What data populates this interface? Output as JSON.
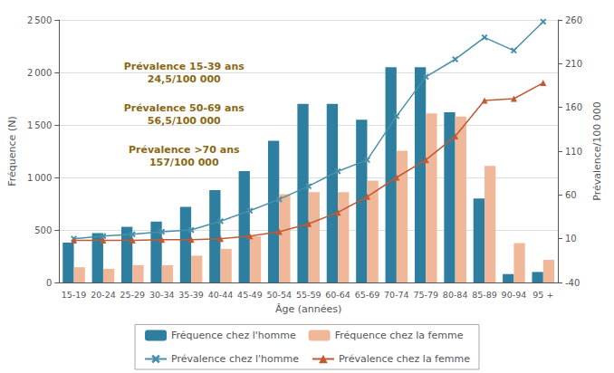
{
  "chart_data": {
    "type": "bar",
    "xlabel": "Âge (années)",
    "ylabel": "Fréquence (N)",
    "y2label": "Prévalence/100 000",
    "categories": [
      "15-19",
      "20-24",
      "25-29",
      "30-34",
      "35-39",
      "40-44",
      "45-49",
      "50-54",
      "55-59",
      "60-64",
      "65-69",
      "70-74",
      "75-79",
      "80-84",
      "85-89",
      "90-94",
      "95 +"
    ],
    "series": [
      {
        "name": "Fréquence chez l'homme",
        "type": "bar",
        "color": "#2e7f9f",
        "values": [
          380,
          470,
          530,
          580,
          720,
          880,
          1060,
          1350,
          1700,
          1700,
          1550,
          2050,
          2050,
          1620,
          800,
          80,
          100
        ]
      },
      {
        "name": "Fréquence chez la femme",
        "type": "bar",
        "color": "#f0b899",
        "values": [
          145,
          130,
          165,
          165,
          255,
          320,
          440,
          840,
          860,
          860,
          970,
          1255,
          1610,
          1580,
          1110,
          375,
          215
        ]
      },
      {
        "name": "Prévalence chez l'homme",
        "type": "line",
        "color": "#4a8fa8",
        "marker": "x",
        "axis": "y2",
        "values": [
          10,
          13,
          15,
          18,
          20,
          30,
          42,
          55,
          70,
          87,
          100,
          150,
          195,
          215,
          240,
          225,
          258
        ]
      },
      {
        "name": "Prévalence chez la femme",
        "type": "line",
        "color": "#c05a35",
        "marker": "triangle",
        "axis": "y2",
        "values": [
          8,
          8,
          8,
          9,
          9,
          10,
          13,
          18,
          27,
          40,
          58,
          80,
          100,
          127,
          168,
          170,
          188
        ]
      }
    ],
    "ylim": [
      0,
      2500
    ],
    "yticks": [
      0,
      500,
      {
        "value": 1000,
        "label": "1 000"
      },
      {
        "value": 1500,
        "label": "1 500"
      },
      {
        "value": 2000,
        "label": "2 000"
      },
      {
        "value": 2500,
        "label": "2 500"
      }
    ],
    "y2lim": [
      -40,
      260
    ],
    "y2ticks": [
      -40,
      10,
      60,
      110,
      160,
      210,
      260
    ],
    "grid": true,
    "legend": "bottom",
    "annotations": [
      {
        "text": "Prévalence 15-39 ans\n24,5/100 000",
        "color": "#8B6914"
      },
      {
        "text": "Prévalence 50-69 ans\n56,5/100 000",
        "color": "#8B6914"
      },
      {
        "text": "Prévalence >70 ans\n157/100 000",
        "color": "#8B6914"
      }
    ]
  }
}
